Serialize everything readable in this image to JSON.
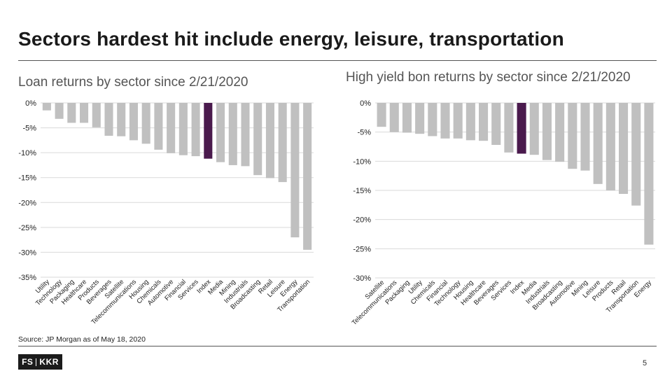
{
  "slide": {
    "title": "Sectors hardest hit include energy, leisure, transportation",
    "source": "Source: JP Morgan as of May 18, 2020",
    "logo": {
      "left": "FS",
      "right": "KKR"
    },
    "page_number": "5"
  },
  "colors": {
    "bar": "#c0c0c0",
    "highlight": "#4a1a4d",
    "grid": "#d9d9d9",
    "text": "#222222"
  },
  "chart_data": [
    {
      "type": "bar",
      "title": "Loan returns by sector since 2/21/2020",
      "categories": [
        "Utility",
        "Technology",
        "Packaging",
        "Healthcare",
        "Products",
        "Beverages",
        "Satellite",
        "Telecommunications",
        "Housing",
        "Chemicals",
        "Automotive",
        "Financial",
        "Services",
        "Index",
        "Media",
        "Mining",
        "Industrials",
        "Broadcasting",
        "Retail",
        "Leisure",
        "Energy",
        "Transportation"
      ],
      "values": [
        -1.5,
        -3.2,
        -4.0,
        -4.0,
        -4.9,
        -6.6,
        -6.7,
        -7.5,
        -8.2,
        -9.4,
        -10.1,
        -10.5,
        -10.7,
        -11.2,
        -11.9,
        -12.5,
        -12.7,
        -14.5,
        -15.1,
        -15.9,
        -27.0,
        -29.5
      ],
      "highlight": "Index",
      "ylim": [
        -35,
        0
      ],
      "yticks": [
        0,
        -5,
        -10,
        -15,
        -20,
        -25,
        -30,
        -35
      ],
      "ytick_labels": [
        "0%",
        "-5%",
        "-10%",
        "-15%",
        "-20%",
        "-25%",
        "-30%",
        "-35%"
      ],
      "xlabel": "",
      "ylabel": "",
      "grid": true
    },
    {
      "type": "bar",
      "title": "High yield bon returns by sector since 2/21/2020",
      "categories": [
        "Satellite",
        "Telecommunications",
        "Packaging",
        "Utility",
        "Chemicals",
        "Financial",
        "Technology",
        "Housing",
        "Healthcare",
        "Beverages",
        "Services",
        "Index",
        "Media",
        "Industrials",
        "Broadcasting",
        "Automotive",
        "Mining",
        "Leisure",
        "Products",
        "Retail",
        "Transportation",
        "Energy"
      ],
      "values": [
        -4.1,
        -5.0,
        -5.1,
        -5.3,
        -5.7,
        -6.1,
        -6.1,
        -6.4,
        -6.5,
        -7.2,
        -8.5,
        -8.7,
        -8.9,
        -9.8,
        -10.1,
        -11.3,
        -11.6,
        -13.9,
        -15.0,
        -15.6,
        -17.6,
        -24.3
      ],
      "highlight": "Index",
      "ylim": [
        -30,
        0
      ],
      "yticks": [
        0,
        -5,
        -10,
        -15,
        -20,
        -25,
        -30
      ],
      "ytick_labels": [
        "0%",
        "-5%",
        "-10%",
        "-15%",
        "-20%",
        "-25%",
        "-30%"
      ],
      "xlabel": "",
      "ylabel": "",
      "grid": true
    }
  ]
}
